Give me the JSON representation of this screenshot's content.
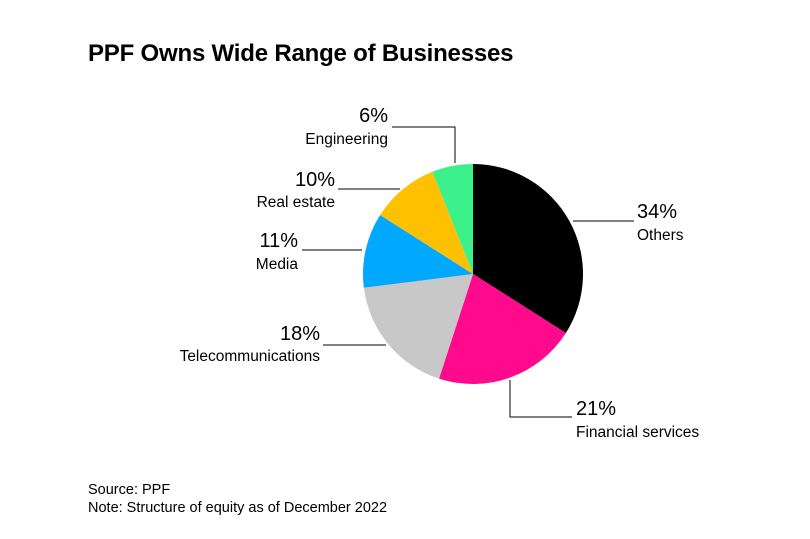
{
  "title": "PPF Owns Wide Range of Businesses",
  "chart_data": {
    "type": "pie",
    "title": "PPF Owns Wide Range of Businesses",
    "start": "top, clockwise",
    "slices": [
      {
        "label": "Others",
        "value": 34,
        "display": "34%",
        "color": "#000000"
      },
      {
        "label": "Financial services",
        "value": 21,
        "display": "21%",
        "color": "#ff0a8c"
      },
      {
        "label": "Telecommunications",
        "value": 18,
        "display": "18%",
        "color": "#c8c8c8"
      },
      {
        "label": "Media",
        "value": 11,
        "display": "11%",
        "color": "#00a8ff"
      },
      {
        "label": "Real estate",
        "value": 10,
        "display": "10%",
        "color": "#ffc000"
      },
      {
        "label": "Engineering",
        "value": 6,
        "display": "6%",
        "color": "#3cf08c"
      }
    ]
  },
  "footer": {
    "source": "Source: PPF",
    "note": "Note: Structure of equity as of December 2022"
  }
}
